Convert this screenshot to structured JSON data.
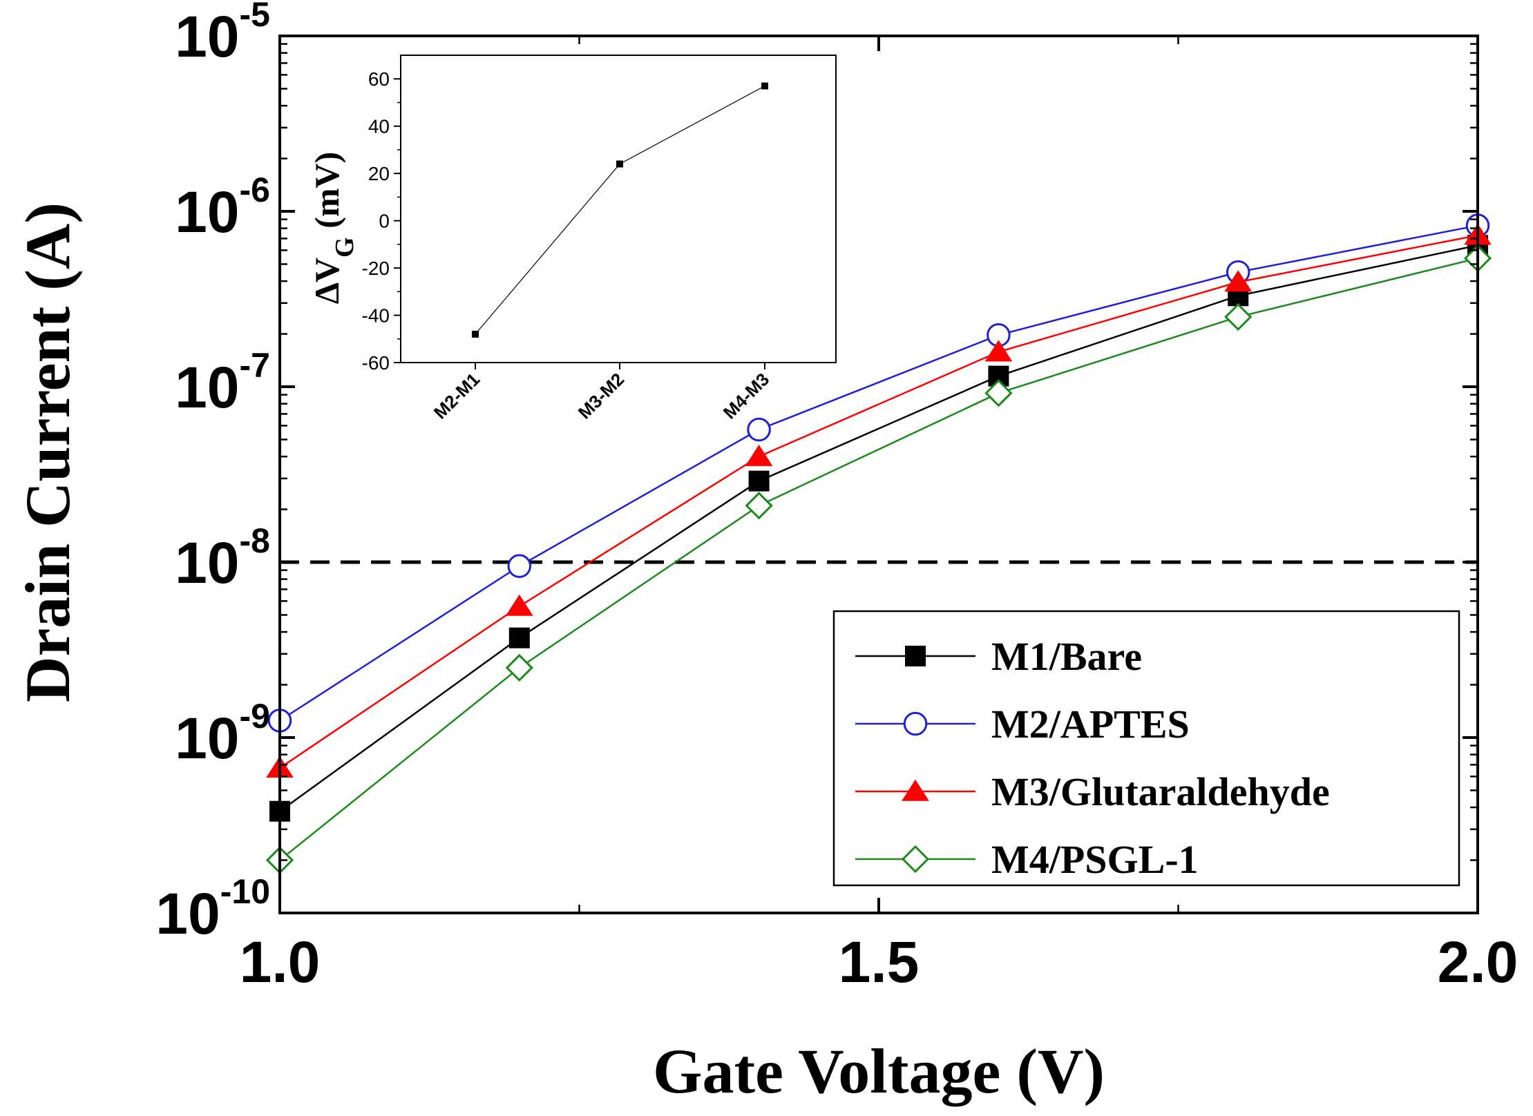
{
  "chart_data": [
    {
      "type": "line",
      "xlabel": "Gate Voltage (V)",
      "ylabel": "Drain Current (A)",
      "yscale": "log",
      "xlim": [
        1.0,
        2.0
      ],
      "ylim": [
        1e-10,
        1e-05
      ],
      "xticks": [
        "1.0",
        "1.5",
        "2.0"
      ],
      "yticks": [
        {
          "value": 1e-05,
          "base": "10",
          "exp": "-5"
        },
        {
          "value": 1e-06,
          "base": "10",
          "exp": "-6"
        },
        {
          "value": 1e-07,
          "base": "10",
          "exp": "-7"
        },
        {
          "value": 1e-08,
          "base": "10",
          "exp": "-8"
        },
        {
          "value": 1e-09,
          "base": "10",
          "exp": "-9"
        },
        {
          "value": 1e-10,
          "base": "10",
          "exp": "-10"
        }
      ],
      "reference_line": {
        "y": 1e-08,
        "style": "dashed"
      },
      "legend_position": "bottom-right",
      "x": [
        1.0,
        1.2,
        1.4,
        1.6,
        1.8,
        2.0
      ],
      "series": [
        {
          "name": "M1/Bare",
          "color": "#000000",
          "marker": "filled-square",
          "values": [
            3.8e-10,
            3.7e-09,
            2.9e-08,
            1.15e-07,
            3.3e-07,
            6.4e-07
          ]
        },
        {
          "name": "M2/APTES",
          "color": "#1f1fd6",
          "marker": "open-circle",
          "values": [
            1.25e-09,
            9.5e-09,
            5.7e-08,
            1.97e-07,
            4.5e-07,
            8.3e-07
          ]
        },
        {
          "name": "M3/Glutaraldehyde",
          "color": "#ff0000",
          "marker": "filled-triangle",
          "values": [
            6.7e-10,
            5.6e-09,
            4e-08,
            1.58e-07,
            3.95e-07,
            7.3e-07
          ]
        },
        {
          "name": "M4/PSGL-1",
          "color": "#1a8a1a",
          "marker": "open-diamond",
          "values": [
            2e-10,
            2.5e-09,
            2.1e-08,
            9.2e-08,
            2.5e-07,
            5.4e-07
          ]
        }
      ]
    },
    {
      "type": "line",
      "ylabel_prefix": "ΔV",
      "ylabel_sub": "G",
      "ylabel_suffix": " (mV)",
      "categories": [
        "M2-M1",
        "M3-M2",
        "M4-M3"
      ],
      "values": [
        -48,
        24,
        57
      ],
      "ylim": [
        -60,
        70
      ],
      "yticks": [
        -60,
        -40,
        -20,
        0,
        20,
        40,
        60
      ],
      "color": "#000000",
      "marker": "filled-square"
    }
  ]
}
